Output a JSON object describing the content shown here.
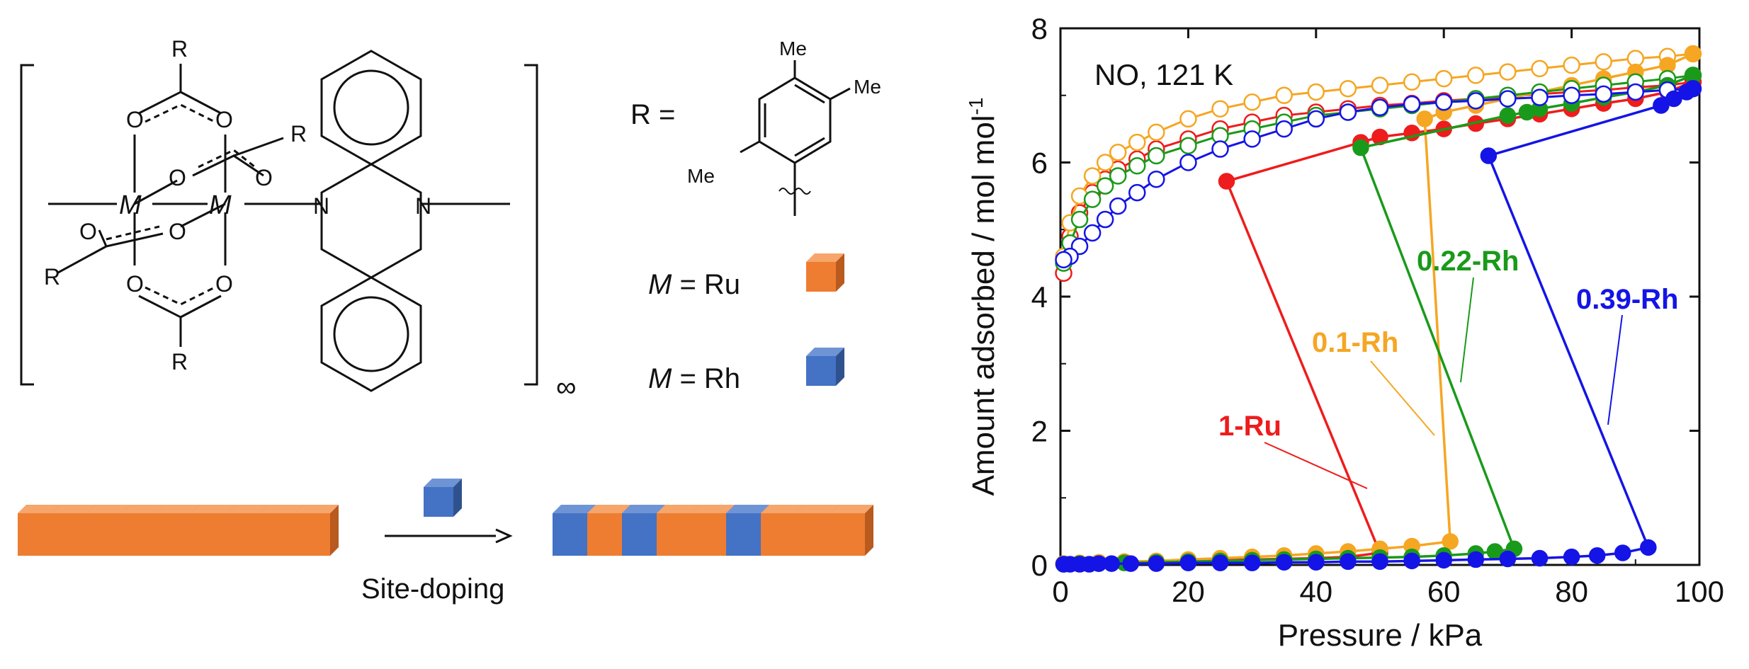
{
  "scheme": {
    "R_text": "R",
    "R_equals": "R =",
    "O_text": "O",
    "N_text": "N",
    "M_text": "M",
    "Me_text": "Me",
    "infinity": "∞",
    "ru_label": {
      "var": "M",
      "rest": " = Ru"
    },
    "rh_label": {
      "var": "M",
      "rest": " = Rh"
    },
    "site_doping": "Site-doping",
    "colors": {
      "ru": "#ee7d31",
      "ru_dark": "#b95a1e",
      "ru_top": "#f6a56b",
      "rh": "#4472c4",
      "rh_dark": "#2f528f",
      "rh_top": "#6f94d6"
    },
    "chain_before": [
      "Ru",
      "Ru",
      "Ru",
      "Ru",
      "Ru",
      "Ru",
      "Ru",
      "Ru",
      "Ru"
    ],
    "chain_after": [
      "Rh",
      "Ru",
      "Rh",
      "Ru",
      "Ru",
      "Rh",
      "Ru",
      "Ru",
      "Ru"
    ]
  },
  "chart_data": {
    "type": "scatter",
    "title": "NO, 121 K",
    "xlabel": "Pressure / kPa",
    "ylabel": "Amount adsorbed / mol mol",
    "ylabel_sup": "-1",
    "xlim": [
      0,
      100
    ],
    "ylim": [
      0,
      8
    ],
    "xticks": [
      0,
      20,
      40,
      60,
      80,
      100
    ],
    "yticks": [
      0,
      2,
      4,
      6,
      8
    ],
    "grid": false,
    "series": [
      {
        "name": "1-Ru",
        "color": "#ee1c1c",
        "adsorption": [
          [
            0.5,
            0.02
          ],
          [
            3,
            0.02
          ],
          [
            6,
            0.03
          ],
          [
            10,
            0.04
          ],
          [
            15,
            0.05
          ],
          [
            20,
            0.06
          ],
          [
            25,
            0.07
          ],
          [
            30,
            0.08
          ],
          [
            35,
            0.09
          ],
          [
            40,
            0.1
          ],
          [
            45,
            0.12
          ],
          [
            50,
            0.18
          ],
          [
            26,
            5.72
          ],
          [
            47,
            6.3
          ],
          [
            50,
            6.38
          ],
          [
            55,
            6.44
          ],
          [
            60,
            6.5
          ],
          [
            65,
            6.58
          ],
          [
            70,
            6.65
          ],
          [
            75,
            6.72
          ],
          [
            80,
            6.8
          ],
          [
            85,
            6.88
          ],
          [
            90,
            6.95
          ],
          [
            95,
            7.05
          ],
          [
            99,
            7.2
          ]
        ],
        "desorption": [
          [
            99,
            7.2
          ],
          [
            95,
            7.15
          ],
          [
            90,
            7.12
          ],
          [
            85,
            7.08
          ],
          [
            80,
            7.05
          ],
          [
            75,
            7.02
          ],
          [
            70,
            6.98
          ],
          [
            65,
            6.95
          ],
          [
            60,
            6.92
          ],
          [
            55,
            6.88
          ],
          [
            50,
            6.85
          ],
          [
            45,
            6.8
          ],
          [
            40,
            6.75
          ],
          [
            35,
            6.7
          ],
          [
            30,
            6.6
          ],
          [
            25,
            6.5
          ],
          [
            20,
            6.35
          ],
          [
            15,
            6.2
          ],
          [
            12,
            6.05
          ],
          [
            9,
            5.9
          ],
          [
            7,
            5.75
          ],
          [
            5,
            5.55
          ],
          [
            3,
            5.25
          ],
          [
            1.5,
            4.9
          ],
          [
            0.5,
            4.35
          ]
        ]
      },
      {
        "name": "0.1-Rh",
        "color": "#f5a623",
        "adsorption": [
          [
            0.5,
            0.02
          ],
          [
            3,
            0.03
          ],
          [
            6,
            0.04
          ],
          [
            10,
            0.05
          ],
          [
            15,
            0.06
          ],
          [
            20,
            0.08
          ],
          [
            25,
            0.1
          ],
          [
            30,
            0.12
          ],
          [
            35,
            0.14
          ],
          [
            40,
            0.17
          ],
          [
            45,
            0.2
          ],
          [
            50,
            0.24
          ],
          [
            55,
            0.28
          ],
          [
            61,
            0.35
          ],
          [
            57,
            6.65
          ],
          [
            60,
            6.75
          ],
          [
            65,
            6.85
          ],
          [
            70,
            6.95
          ],
          [
            75,
            7.05
          ],
          [
            80,
            7.15
          ],
          [
            85,
            7.25
          ],
          [
            90,
            7.35
          ],
          [
            95,
            7.45
          ],
          [
            99,
            7.62
          ]
        ],
        "desorption": [
          [
            99,
            7.62
          ],
          [
            95,
            7.58
          ],
          [
            90,
            7.55
          ],
          [
            85,
            7.5
          ],
          [
            80,
            7.45
          ],
          [
            75,
            7.4
          ],
          [
            70,
            7.35
          ],
          [
            65,
            7.3
          ],
          [
            60,
            7.25
          ],
          [
            55,
            7.2
          ],
          [
            50,
            7.15
          ],
          [
            45,
            7.1
          ],
          [
            40,
            7.05
          ],
          [
            35,
            7.0
          ],
          [
            30,
            6.9
          ],
          [
            25,
            6.8
          ],
          [
            20,
            6.65
          ],
          [
            15,
            6.45
          ],
          [
            12,
            6.3
          ],
          [
            9,
            6.15
          ],
          [
            7,
            6.0
          ],
          [
            5,
            5.8
          ],
          [
            3,
            5.5
          ],
          [
            1.5,
            5.1
          ],
          [
            0.5,
            4.6
          ]
        ]
      },
      {
        "name": "0.22-Rh",
        "color": "#1a9a1a",
        "adsorption": [
          [
            0.5,
            0.01
          ],
          [
            3,
            0.02
          ],
          [
            6,
            0.02
          ],
          [
            10,
            0.03
          ],
          [
            15,
            0.04
          ],
          [
            20,
            0.05
          ],
          [
            25,
            0.06
          ],
          [
            30,
            0.07
          ],
          [
            35,
            0.08
          ],
          [
            40,
            0.09
          ],
          [
            45,
            0.1
          ],
          [
            50,
            0.11
          ],
          [
            55,
            0.12
          ],
          [
            60,
            0.14
          ],
          [
            65,
            0.17
          ],
          [
            68,
            0.2
          ],
          [
            71,
            0.24
          ],
          [
            47,
            6.22
          ],
          [
            70,
            6.7
          ],
          [
            73,
            6.75
          ],
          [
            75,
            6.8
          ],
          [
            80,
            6.88
          ],
          [
            85,
            6.97
          ],
          [
            90,
            7.05
          ],
          [
            95,
            7.15
          ],
          [
            99,
            7.3
          ]
        ],
        "desorption": [
          [
            99,
            7.3
          ],
          [
            95,
            7.25
          ],
          [
            90,
            7.2
          ],
          [
            85,
            7.15
          ],
          [
            80,
            7.1
          ],
          [
            75,
            7.05
          ],
          [
            70,
            7.0
          ],
          [
            65,
            6.95
          ],
          [
            60,
            6.9
          ],
          [
            55,
            6.85
          ],
          [
            50,
            6.8
          ],
          [
            45,
            6.75
          ],
          [
            40,
            6.7
          ],
          [
            35,
            6.6
          ],
          [
            30,
            6.5
          ],
          [
            25,
            6.4
          ],
          [
            20,
            6.25
          ],
          [
            15,
            6.1
          ],
          [
            12,
            5.95
          ],
          [
            9,
            5.8
          ],
          [
            7,
            5.65
          ],
          [
            5,
            5.45
          ],
          [
            3,
            5.15
          ],
          [
            1.5,
            4.8
          ],
          [
            0.5,
            4.5
          ]
        ]
      },
      {
        "name": "0.39-Rh",
        "color": "#1414e6",
        "adsorption": [
          [
            0.5,
            0.01
          ],
          [
            1.5,
            0.01
          ],
          [
            3,
            0.01
          ],
          [
            4.5,
            0.01
          ],
          [
            6,
            0.02
          ],
          [
            8,
            0.02
          ],
          [
            11,
            0.02
          ],
          [
            15,
            0.02
          ],
          [
            20,
            0.03
          ],
          [
            25,
            0.03
          ],
          [
            30,
            0.03
          ],
          [
            35,
            0.04
          ],
          [
            40,
            0.04
          ],
          [
            45,
            0.05
          ],
          [
            50,
            0.05
          ],
          [
            55,
            0.06
          ],
          [
            60,
            0.07
          ],
          [
            65,
            0.08
          ],
          [
            70,
            0.09
          ],
          [
            75,
            0.1
          ],
          [
            80,
            0.12
          ],
          [
            84,
            0.14
          ],
          [
            88,
            0.18
          ],
          [
            92,
            0.26
          ],
          [
            67,
            6.1
          ],
          [
            94,
            6.85
          ],
          [
            96,
            6.95
          ],
          [
            98,
            7.05
          ],
          [
            99,
            7.1
          ]
        ],
        "desorption": [
          [
            99,
            7.1
          ],
          [
            95,
            7.08
          ],
          [
            90,
            7.05
          ],
          [
            85,
            7.02
          ],
          [
            80,
            7.0
          ],
          [
            75,
            6.97
          ],
          [
            70,
            6.95
          ],
          [
            65,
            6.92
          ],
          [
            60,
            6.9
          ],
          [
            55,
            6.87
          ],
          [
            50,
            6.82
          ],
          [
            45,
            6.75
          ],
          [
            40,
            6.65
          ],
          [
            35,
            6.5
          ],
          [
            30,
            6.35
          ],
          [
            25,
            6.2
          ],
          [
            20,
            6.0
          ],
          [
            15,
            5.75
          ],
          [
            12,
            5.55
          ],
          [
            9,
            5.35
          ],
          [
            7,
            5.15
          ],
          [
            5,
            4.95
          ],
          [
            3,
            4.75
          ],
          [
            1.5,
            4.6
          ],
          [
            0.5,
            4.55
          ]
        ]
      }
    ],
    "annotations": [
      {
        "text": "1-Ru",
        "color": "#ee1c1c"
      },
      {
        "text": "0.1-Rh",
        "color": "#f5a623"
      },
      {
        "text": "0.22-Rh",
        "color": "#1a9a1a"
      },
      {
        "text": "0.39-Rh",
        "color": "#1414e6"
      }
    ]
  }
}
